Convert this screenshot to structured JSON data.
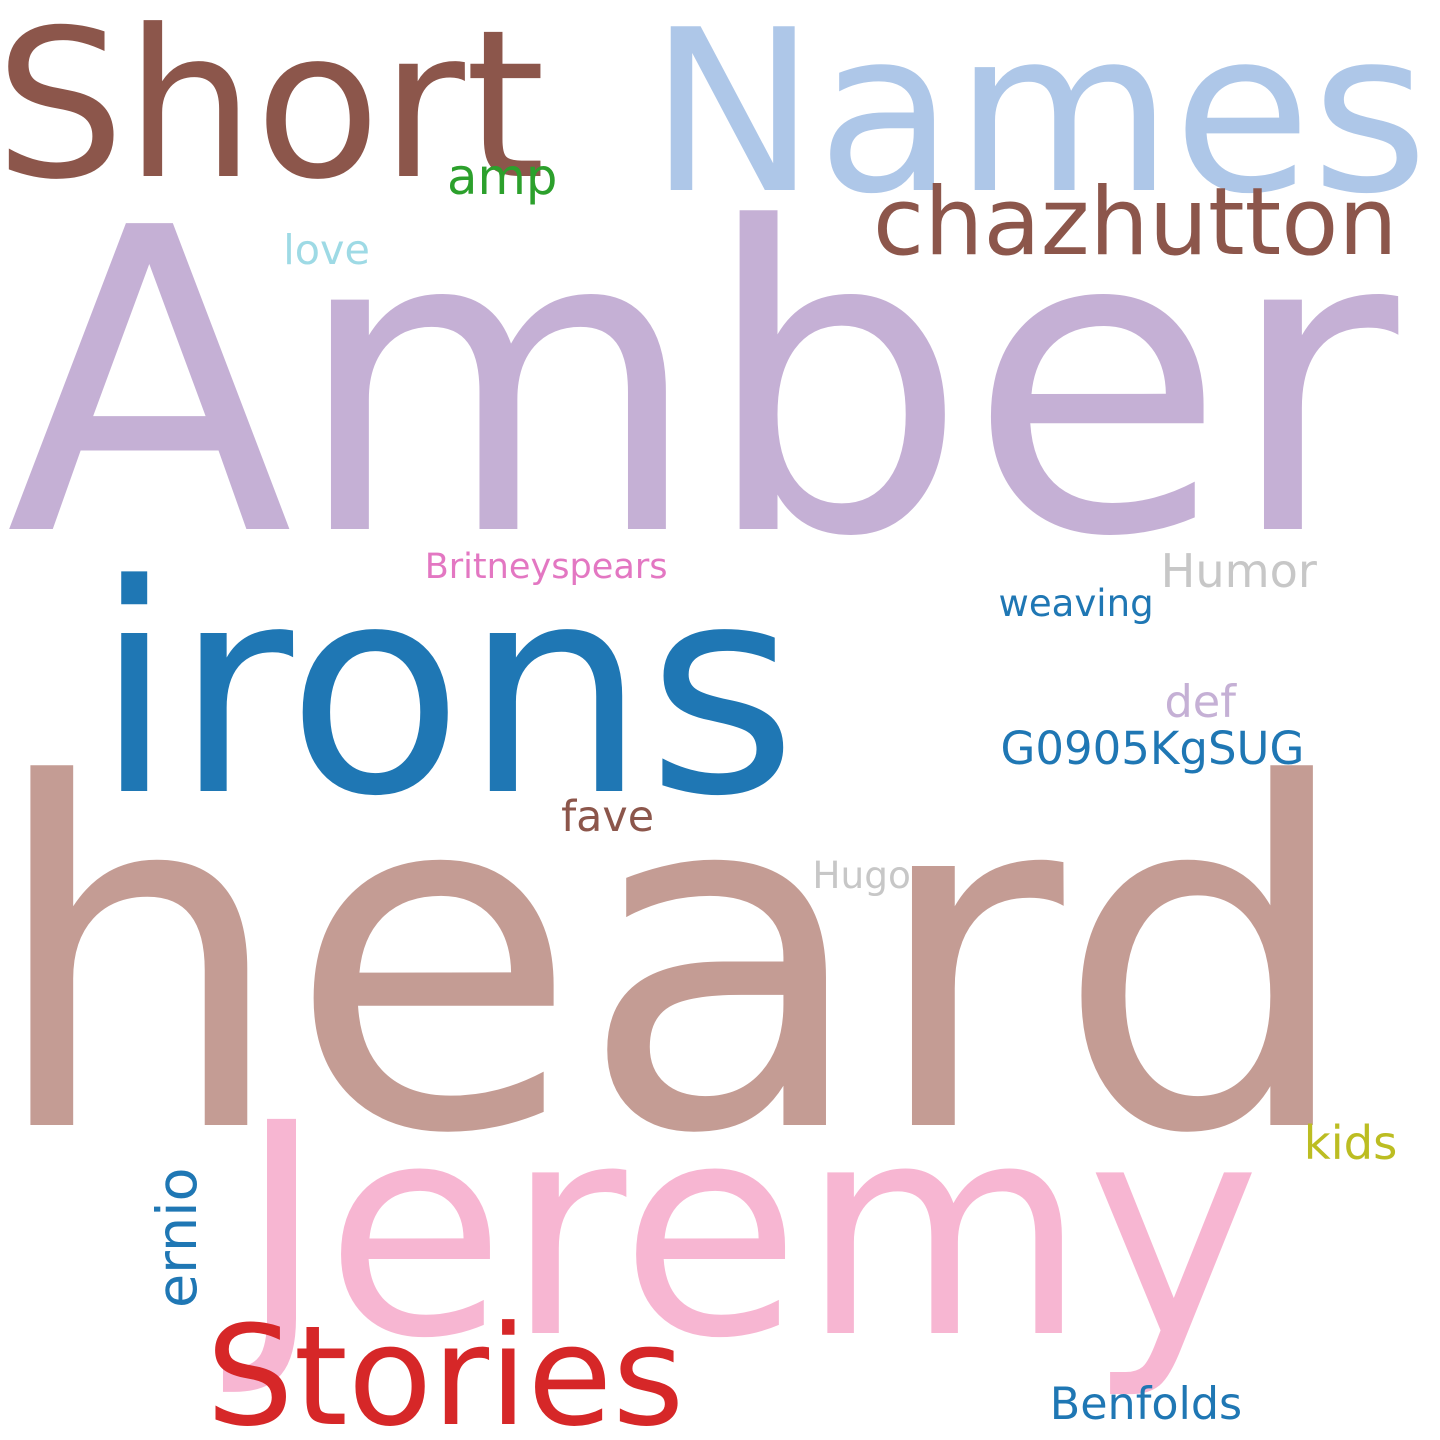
{
  "words": [
    {
      "key": "amber",
      "text": "Amber",
      "color": "#c5b0d5"
    },
    {
      "key": "heard",
      "text": "heard",
      "color": "#c49c94"
    },
    {
      "key": "irons",
      "text": "irons",
      "color": "#1f77b4"
    },
    {
      "key": "names",
      "text": "Names",
      "color": "#aec7e8"
    },
    {
      "key": "short",
      "text": "Short",
      "color": "#8c564b"
    },
    {
      "key": "jeremy",
      "text": "Jeremy",
      "color": "#f7b6d2"
    },
    {
      "key": "stories",
      "text": "Stories",
      "color": "#d62728"
    },
    {
      "key": "chazhutton",
      "text": "chazhutton",
      "color": "#8c564b"
    },
    {
      "key": "amp",
      "text": "amp",
      "color": "#2ca02c"
    },
    {
      "key": "love",
      "text": "love",
      "color": "#9edae5"
    },
    {
      "key": "britneyspears",
      "text": "Britneyspears",
      "color": "#e377c2"
    },
    {
      "key": "humor",
      "text": "Humor",
      "color": "#c7c7c7"
    },
    {
      "key": "weaving",
      "text": "weaving",
      "color": "#1f77b4"
    },
    {
      "key": "def",
      "text": "def",
      "color": "#c5b0d5"
    },
    {
      "key": "g0905kgsug",
      "text": "G0905KgSUG",
      "color": "#1f77b4"
    },
    {
      "key": "fave",
      "text": "fave",
      "color": "#8c564b"
    },
    {
      "key": "hugo",
      "text": "Hugo",
      "color": "#c7c7c7"
    },
    {
      "key": "ernio",
      "text": "ernio",
      "color": "#1f77b4"
    },
    {
      "key": "kids",
      "text": "kids",
      "color": "#bcbd22"
    },
    {
      "key": "benfolds",
      "text": "Benfolds",
      "color": "#1f77b4"
    }
  ]
}
